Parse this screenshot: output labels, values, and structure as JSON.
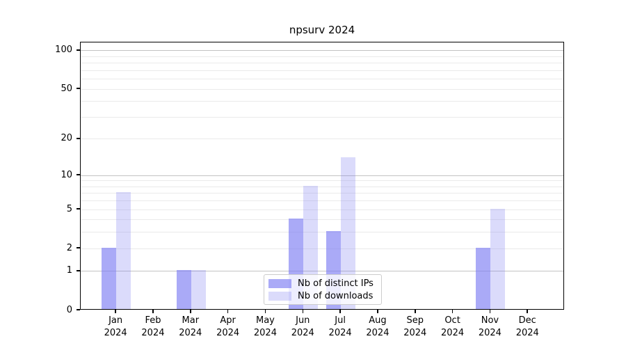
{
  "chart_data": {
    "type": "bar",
    "title": "npsurv 2024",
    "categories": [
      "Jan\n2024",
      "Feb\n2024",
      "Mar\n2024",
      "Apr\n2024",
      "May\n2024",
      "Jun\n2024",
      "Jul\n2024",
      "Aug\n2024",
      "Sep\n2024",
      "Oct\n2024",
      "Nov\n2024",
      "Dec\n2024"
    ],
    "series": [
      {
        "name": "Nb of distinct IPs",
        "color": "rgba(125,125,242,0.65)",
        "values": [
          2,
          0,
          1,
          0,
          0,
          4,
          3,
          0,
          0,
          0,
          2,
          0
        ]
      },
      {
        "name": "Nb of downloads",
        "color": "rgba(125,125,242,0.28)",
        "values": [
          7,
          0,
          1,
          0,
          0,
          8,
          14,
          0,
          0,
          0,
          5,
          0
        ]
      }
    ],
    "xlabel": "",
    "ylabel": "",
    "y_scale": "log1p",
    "y_ticks": [
      "0",
      "1",
      "2",
      "5",
      "10",
      "20",
      "50",
      "100"
    ],
    "grid_major_values": [
      1,
      10,
      100
    ],
    "grid_minor_values": [
      2,
      3,
      4,
      5,
      6,
      7,
      8,
      9,
      20,
      30,
      40,
      50,
      60,
      70,
      80,
      90
    ],
    "ylim": [
      0,
      116
    ],
    "xlim": [
      -0.95,
      11.98
    ],
    "grid": "on",
    "legend_position": "lower center"
  },
  "colors": {
    "bar_distinct_ips": "#a8a8f7",
    "bar_downloads": "#dcdcfa",
    "grid_major": "#c2c2c2",
    "grid_minor": "#eaeaea",
    "axis": "#000000",
    "background": "#ffffff",
    "legend_border": "#cccccc"
  }
}
